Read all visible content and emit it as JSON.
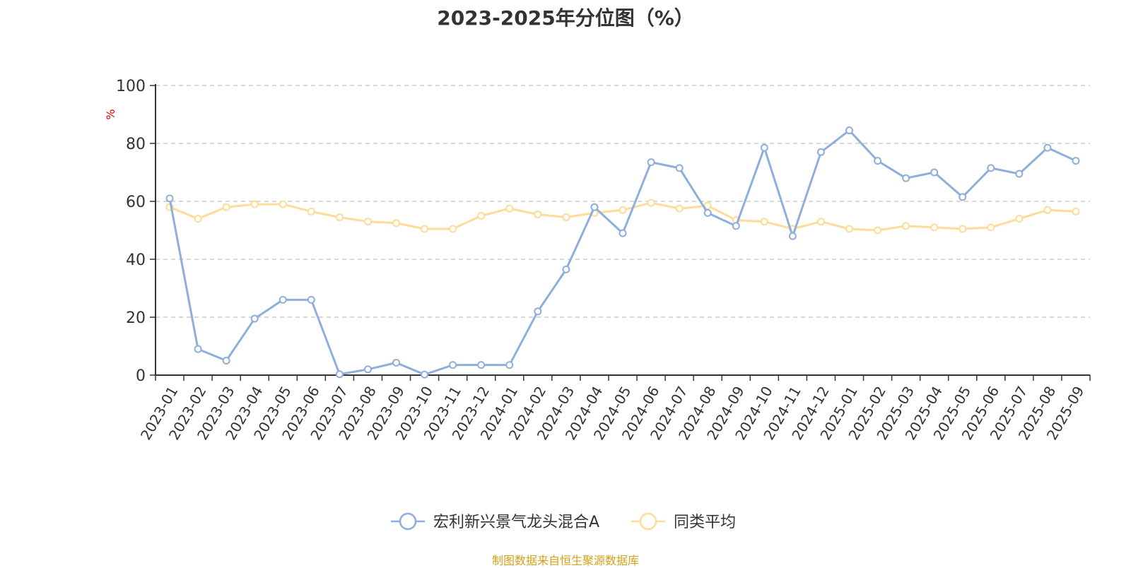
{
  "chart_data": {
    "type": "line",
    "title": "2023-2025年分位图（%）",
    "ylabel": "%",
    "ylim": [
      0,
      100
    ],
    "yticks": [
      0,
      20,
      40,
      60,
      80,
      100
    ],
    "grid": true,
    "legend_position": "bottom",
    "categories": [
      "2023-01",
      "2023-02",
      "2023-03",
      "2023-04",
      "2023-05",
      "2023-06",
      "2023-07",
      "2023-08",
      "2023-09",
      "2023-10",
      "2023-11",
      "2023-12",
      "2024-01",
      "2024-02",
      "2024-03",
      "2024-04",
      "2024-05",
      "2024-06",
      "2024-07",
      "2024-08",
      "2024-09",
      "2024-10",
      "2024-11",
      "2024-12",
      "2025-01",
      "2025-02",
      "2025-03",
      "2025-04",
      "2025-05",
      "2025-06",
      "2025-07",
      "2025-08",
      "2025-09"
    ],
    "series": [
      {
        "name": "宏利新兴景气龙头混合A",
        "color": "#8eaedb",
        "values": [
          61,
          9,
          5,
          19.5,
          26,
          26,
          0.3,
          2,
          4.3,
          0.2,
          3.5,
          3.5,
          3.5,
          22,
          36.5,
          58,
          49,
          73.5,
          71.5,
          56,
          51.5,
          78.5,
          48,
          77,
          84.5,
          74,
          68,
          70,
          61.5,
          71.5,
          69.5,
          78.5,
          74
        ]
      },
      {
        "name": "同类平均",
        "color": "#fddb99",
        "values": [
          58,
          54,
          58,
          59,
          59,
          56.5,
          54.5,
          53,
          52.5,
          50.5,
          50.5,
          55,
          57.5,
          55.5,
          54.5,
          56,
          57,
          59.5,
          57.5,
          58.5,
          53.5,
          53,
          50.5,
          53,
          50.5,
          50,
          51.5,
          51,
          50.5,
          51,
          54,
          57,
          56.5
        ]
      }
    ]
  },
  "footer": {
    "text": "制图数据来自恒生聚源数据库",
    "color": "#d4a017"
  },
  "colors": {
    "axis": "#333333",
    "grid": "#cccccc",
    "unit_label": "#e00000"
  }
}
